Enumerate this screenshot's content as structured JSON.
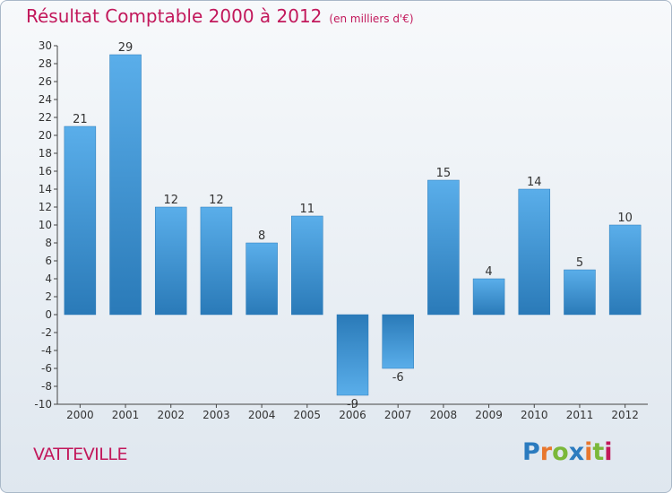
{
  "header": {
    "title": "Résultat Comptable 2000 à 2012",
    "subtitle": "(en milliers d'€)"
  },
  "footer": {
    "commune": "VATTEVILLE",
    "brand": [
      "P",
      "r",
      "o",
      "x",
      "i",
      "t",
      "i"
    ],
    "brand_colors": [
      "#2b7bbf",
      "#e8772e",
      "#7bb83a",
      "#2b7bbf",
      "#e8772e",
      "#7bb83a",
      "#c2185b"
    ]
  },
  "colors": {
    "bar_light": "#5aaeea",
    "bar_dark": "#2a7ab8",
    "title": "#c2185b",
    "axis": "#333333"
  },
  "chart_data": {
    "type": "bar",
    "title": "Résultat Comptable 2000 à 2012",
    "subtitle": "(en milliers d'€)",
    "xlabel": "",
    "ylabel": "",
    "categories": [
      "2000",
      "2001",
      "2002",
      "2003",
      "2004",
      "2005",
      "2006",
      "2007",
      "2008",
      "2009",
      "2010",
      "2011",
      "2012"
    ],
    "values": [
      21,
      29,
      12,
      12,
      8,
      11,
      -9,
      -6,
      15,
      4,
      14,
      5,
      10
    ],
    "ylim": [
      -10,
      30
    ],
    "yticks": [
      30,
      28,
      26,
      24,
      22,
      20,
      18,
      16,
      14,
      12,
      10,
      8,
      6,
      4,
      2,
      0,
      -2,
      -4,
      -6,
      -8,
      -10
    ],
    "grid": false
  }
}
